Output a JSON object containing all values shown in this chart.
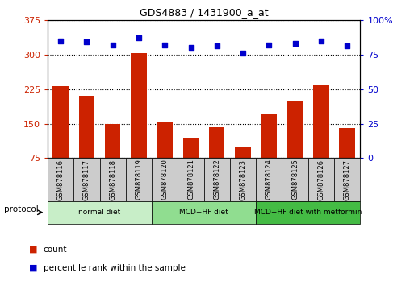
{
  "title": "GDS4883 / 1431900_a_at",
  "samples": [
    "GSM878116",
    "GSM878117",
    "GSM878118",
    "GSM878119",
    "GSM878120",
    "GSM878121",
    "GSM878122",
    "GSM878123",
    "GSM878124",
    "GSM878125",
    "GSM878126",
    "GSM878127"
  ],
  "bar_values": [
    232,
    210,
    150,
    303,
    152,
    118,
    143,
    100,
    172,
    200,
    235,
    140
  ],
  "dot_values": [
    85,
    84,
    82,
    87,
    82,
    80,
    81,
    76,
    82,
    83,
    85,
    81
  ],
  "bar_color": "#CC2200",
  "dot_color": "#0000CC",
  "ylim_left": [
    75,
    375
  ],
  "ylim_right": [
    0,
    100
  ],
  "yticks_left": [
    75,
    150,
    225,
    300,
    375
  ],
  "yticks_right": [
    0,
    25,
    50,
    75,
    100
  ],
  "groups": [
    {
      "label": "normal diet",
      "start": 0,
      "end": 4,
      "color": "#C8EEC8"
    },
    {
      "label": "MCD+HF diet",
      "start": 4,
      "end": 8,
      "color": "#90DD90"
    },
    {
      "label": "MCD+HF diet with metformin",
      "start": 8,
      "end": 12,
      "color": "#44BB44"
    }
  ],
  "protocol_label": "protocol",
  "legend_bar_label": "count",
  "legend_dot_label": "percentile rank within the sample",
  "sample_box_color": "#CCCCCC",
  "background_color": "#FFFFFF"
}
